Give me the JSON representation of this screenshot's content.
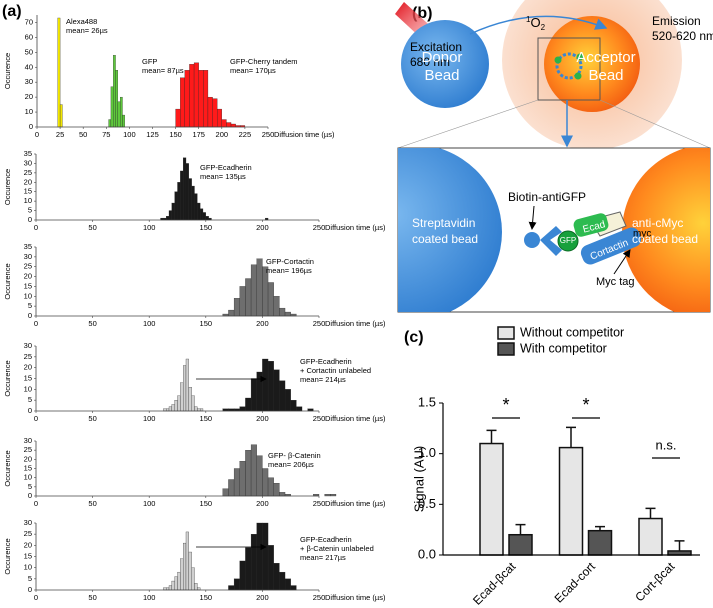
{
  "panel_labels": [
    "(a)",
    "(b)",
    "(c)"
  ],
  "chart_data": [
    {
      "type": "histogram",
      "xlabel": "Diffusion time (µs)",
      "ylabel": "Occurence",
      "xlim": [
        0,
        250
      ],
      "xticks": [
        0,
        25,
        50,
        75,
        100,
        125,
        150,
        175,
        200,
        225,
        250
      ],
      "ylim": [
        0,
        75
      ],
      "yticks": [
        0,
        10,
        20,
        30,
        40,
        50,
        60,
        70
      ],
      "series": [
        {
          "color": "#f2e600",
          "bins": [
            22.5,
            25,
            27.5
          ],
          "values": [
            73,
            15
          ]
        },
        {
          "color": "#5ec83c",
          "bins": [
            77.5,
            80,
            82.5,
            85,
            87.5,
            90,
            92.5,
            95
          ],
          "values": [
            5,
            27,
            48,
            38,
            17,
            20,
            8
          ]
        },
        {
          "color": "#ff1a1a",
          "bins": [
            150,
            155,
            160,
            165,
            170,
            175,
            180,
            185,
            190,
            195,
            200,
            205,
            210,
            215,
            220,
            225
          ],
          "values": [
            12,
            33,
            38,
            42,
            43,
            38,
            38,
            20,
            19,
            12,
            5,
            3,
            2,
            1,
            1
          ]
        }
      ],
      "annotations": [
        [
          "Alexa488",
          "mean= 26µs"
        ],
        [
          "GFP",
          "mean= 87µs"
        ],
        [
          "GFP-Cherry tandem",
          "mean= 170µs"
        ]
      ]
    },
    {
      "type": "histogram",
      "xlabel": "Diffusion time (µs)",
      "ylabel": "Occurence",
      "xlim": [
        0,
        250
      ],
      "xticks": [
        0,
        50,
        100,
        150,
        200,
        250
      ],
      "ylim": [
        0,
        35
      ],
      "yticks": [
        0,
        5,
        10,
        15,
        20,
        25,
        30,
        35
      ],
      "series": [
        {
          "color": "#1a1a1a",
          "bins": [
            110,
            112.5,
            115,
            117.5,
            120,
            122.5,
            125,
            127.5,
            130,
            132.5,
            135,
            137.5,
            140,
            142.5,
            145,
            147.5,
            150,
            152.5,
            155
          ],
          "values": [
            1,
            1,
            2,
            5,
            9,
            15,
            20,
            26,
            33,
            30,
            22,
            18,
            14,
            9,
            6,
            4,
            2,
            1
          ]
        },
        {
          "color": "#1a1a1a",
          "bins": [
            202.5,
            205
          ],
          "values": [
            1
          ]
        }
      ],
      "annotations": [
        [
          "GFP-Ecadherin",
          "mean= 135µs"
        ]
      ]
    },
    {
      "type": "histogram",
      "xlabel": "Diffusion time (µs)",
      "ylabel": "Occurence",
      "xlim": [
        0,
        250
      ],
      "xticks": [
        0,
        50,
        100,
        150,
        200,
        250
      ],
      "ylim": [
        0,
        35
      ],
      "yticks": [
        0,
        5,
        10,
        15,
        20,
        25,
        30,
        35
      ],
      "series": [
        {
          "color": "#6e6e6e",
          "bins": [
            165,
            170,
            175,
            180,
            185,
            190,
            195,
            200,
            205,
            210,
            215,
            220,
            225,
            230
          ],
          "values": [
            1,
            3,
            9,
            15,
            19,
            26,
            29,
            25,
            17,
            10,
            4,
            2,
            1
          ]
        }
      ],
      "annotations": [
        [
          "GFP-Cortactin",
          "mean= 196µs"
        ]
      ]
    },
    {
      "type": "histogram",
      "xlabel": "Diffusion time (µs)",
      "ylabel": "Occurence",
      "xlim": [
        0,
        250
      ],
      "xticks": [
        0,
        50,
        100,
        150,
        200,
        250
      ],
      "ylim": [
        0,
        30
      ],
      "yticks": [
        0,
        5,
        10,
        15,
        20,
        25,
        30
      ],
      "series": [
        {
          "color": "#d0d0d0",
          "bins": [
            112.5,
            115,
            117.5,
            120,
            122.5,
            125,
            127.5,
            130,
            132.5,
            135,
            137.5,
            140,
            142.5,
            145,
            147.5,
            150
          ],
          "values": [
            1,
            1,
            2,
            3,
            5,
            7,
            13,
            21,
            24,
            11,
            7,
            2,
            1,
            1,
            0
          ]
        },
        {
          "color": "#1a1a1a",
          "bins": [
            165,
            170,
            175,
            180,
            185,
            190,
            195,
            200,
            205,
            210,
            215,
            220,
            225,
            230,
            235,
            240,
            245,
            250
          ],
          "values": [
            1,
            1,
            1,
            2,
            6,
            15,
            18,
            24,
            23,
            19,
            14,
            10,
            5,
            2,
            0,
            1,
            0
          ]
        }
      ],
      "annotations": [
        [
          "GFP-Ecadherin",
          "+ Cortactin unlabeled",
          "mean= 214µs"
        ]
      ]
    },
    {
      "type": "histogram",
      "xlabel": "Diffusion time (µs)",
      "ylabel": "Occurence",
      "xlim": [
        0,
        250
      ],
      "xticks": [
        0,
        50,
        100,
        150,
        200,
        250
      ],
      "ylim": [
        0,
        30
      ],
      "yticks": [
        0,
        5,
        10,
        15,
        20,
        25,
        30
      ],
      "series": [
        {
          "color": "#6e6e6e",
          "bins": [
            165,
            170,
            175,
            180,
            185,
            190,
            195,
            200,
            205,
            210,
            215,
            220,
            225,
            230
          ],
          "values": [
            4,
            9,
            15,
            19,
            25,
            28,
            22,
            15,
            10,
            7,
            2,
            1,
            0
          ]
        },
        {
          "color": "#6e6e6e",
          "bins": [
            245,
            250,
            255,
            260,
            265
          ],
          "values": [
            1,
            0,
            1,
            1
          ]
        }
      ],
      "annotations": [
        [
          "GFP- β-Catenin",
          "mean= 206µs"
        ]
      ]
    },
    {
      "type": "histogram",
      "xlabel": "Diffusion time (µs)",
      "ylabel": "Occurence",
      "xlim": [
        0,
        250
      ],
      "xticks": [
        0,
        50,
        100,
        150,
        200,
        250
      ],
      "ylim": [
        0,
        30
      ],
      "yticks": [
        0,
        5,
        10,
        15,
        20,
        25,
        30
      ],
      "series": [
        {
          "color": "#d0d0d0",
          "bins": [
            112.5,
            115,
            117.5,
            120,
            122.5,
            125,
            127.5,
            130,
            132.5,
            135,
            137.5,
            140,
            142.5,
            145,
            147.5,
            150
          ],
          "values": [
            1,
            1,
            2,
            4,
            6,
            8,
            14,
            21,
            26,
            17,
            10,
            3,
            1,
            0,
            0
          ]
        },
        {
          "color": "#1a1a1a",
          "bins": [
            170,
            175,
            180,
            185,
            190,
            195,
            200,
            205,
            210,
            215,
            220,
            225,
            230
          ],
          "values": [
            2,
            5,
            13,
            19,
            25,
            30,
            30,
            20,
            12,
            8,
            5,
            2
          ]
        }
      ],
      "annotations": [
        [
          "GFP-Ecadherin",
          "+ β-Catenin unlabeled",
          "mean= 217µs"
        ]
      ]
    },
    {
      "type": "bar",
      "ylabel": "Signal (AU)",
      "categories": [
        "Ecad-βcat",
        "Ecad-cort",
        "Cort-βcat"
      ],
      "ylim": [
        0,
        1.5
      ],
      "yticks": [
        {
          "value": 0,
          "label": "0.0"
        },
        {
          "value": 0.5,
          "label": "0.5"
        },
        {
          "value": 1,
          "label": "1.0"
        },
        {
          "value": 1.5,
          "label": "1.5"
        }
      ],
      "series": [
        {
          "name": "Without competitor",
          "color": "#e6e6e6",
          "values": [
            1.1,
            1.06,
            0.36
          ],
          "errors": [
            0.13,
            0.2,
            0.1
          ]
        },
        {
          "name": "With competitor",
          "color": "#555555",
          "values": [
            0.2,
            0.24,
            0.04
          ],
          "errors": [
            0.1,
            0.04,
            0.1
          ]
        }
      ],
      "annotations": [
        "*",
        "*",
        "n.s."
      ]
    }
  ],
  "diagram": {
    "excitation": [
      "Excitation",
      "680 nm"
    ],
    "emission": [
      "Emission",
      "520-620 nm"
    ],
    "singlet_oxygen": {
      "superscript": "1",
      "text": "O",
      "subscript": "2"
    },
    "donor": [
      "Donor",
      "Bead"
    ],
    "acceptor": [
      "Acceptor",
      "Bead"
    ],
    "biotin": "Biotin-antiGFP",
    "gfp": "GFP",
    "ecad": "Ecad",
    "streptavidin": [
      "Streptavidin",
      "coated bead"
    ],
    "cortactin": "Cortactin",
    "myc": "myc",
    "anticmyc": [
      "anti-cMyc",
      "coated bead"
    ],
    "myc_tag": "Myc tag"
  }
}
